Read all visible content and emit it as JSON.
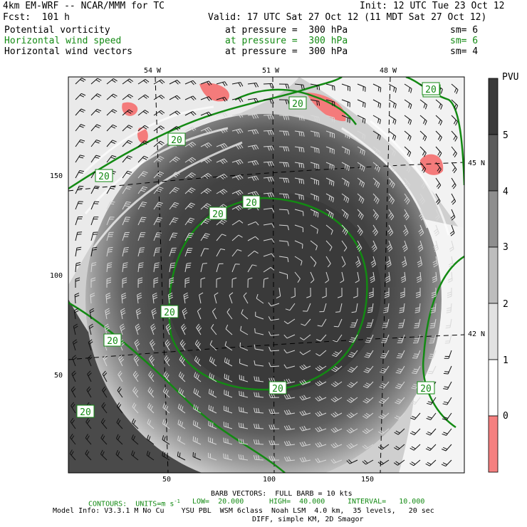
{
  "header": {
    "model": "4km EM-WRF -- NCAR/MMM for TC",
    "init": "Init: 12 UTC Tue 23 Oct 12",
    "fcst": "Fcst:  101 h",
    "valid": "Valid: 17 UTC Sat 27 Oct 12 (11 MDT Sat 27 Oct 12)"
  },
  "fields": [
    {
      "name": "Potential vorticity",
      "level": "at pressure =  300 hPa",
      "sm": "sm= 6",
      "color": "#000000"
    },
    {
      "name": "Horizontal wind speed",
      "level": "at pressure =  300 hPa",
      "sm": "sm= 6",
      "color": "#138a13"
    },
    {
      "name": "Horizontal wind vectors",
      "level": "at pressure =  300 hPa",
      "sm": "sm= 4",
      "color": "#000000"
    }
  ],
  "map": {
    "lon_labels": [
      "54 W",
      "51 W",
      "48 W"
    ],
    "lat_labels": [
      "45 N",
      "42 N"
    ],
    "grid_x_ticks": [
      "50",
      "100",
      "150"
    ],
    "grid_y_ticks": [
      "150",
      "100",
      "50"
    ],
    "contour_labels": [
      "20",
      "20",
      "20",
      "20",
      "20",
      "20",
      "20",
      "20",
      "20",
      "20",
      "20",
      "20"
    ]
  },
  "colorbar": {
    "unit": "PVU",
    "labels": [
      "5",
      "4",
      "3",
      "2",
      "1",
      "0"
    ],
    "colors": [
      "#3a3a3a",
      "#5c5c5c",
      "#8e8e8e",
      "#bdbdbd",
      "#e2e2e2",
      "#ffffff",
      "#f58080"
    ]
  },
  "footer": {
    "barb": "BARB VECTORS:  FULL BARB = 10 kts",
    "contours": "CONTOURS:  UNITS=m s",
    "contours_sup": "-1",
    "low": "LOW=  20.000",
    "high": "HIGH=  40.000",
    "interval": "INTERVAL=   10.000",
    "model_info": "Model Info: V3.3.1 M No Cu    YSU PBL  WSM 6class  Noah LSM  4.0 km,  35 levels,   20 sec",
    "model_info2": "DIFF, simple KM, 2D Smagor"
  }
}
